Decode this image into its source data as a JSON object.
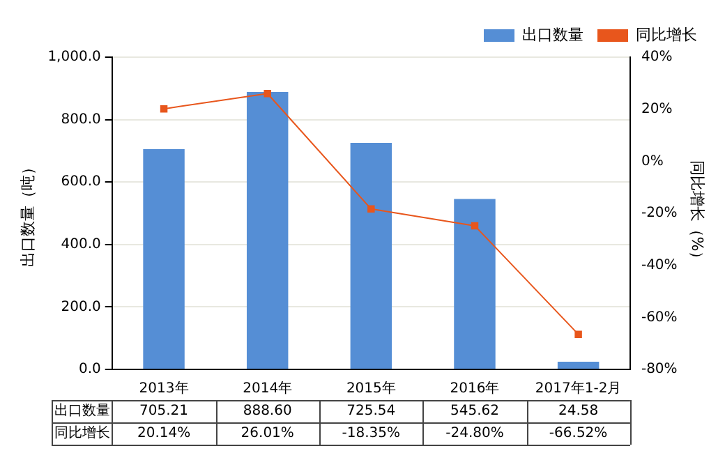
{
  "chart_data": {
    "type": "bar",
    "categories": [
      "2013年",
      "2014年",
      "2015年",
      "2016年",
      "2017年1-2月"
    ],
    "series": [
      {
        "name": "出口数量",
        "color": "#558ed5",
        "values": [
          705.21,
          888.6,
          725.54,
          545.62,
          24.58
        ],
        "value_labels": [
          "705.21",
          "888.60",
          "725.54",
          "545.62",
          "24.58"
        ]
      },
      {
        "name": "同比增长",
        "type": "line",
        "axis": "y2",
        "color": "#e8561c",
        "marker": "square",
        "values": [
          20.14,
          26.01,
          -18.35,
          -24.8,
          -66.52
        ],
        "value_labels": [
          "20.14%",
          "26.01%",
          "-18.35%",
          "-24.80%",
          "-66.52%"
        ]
      }
    ],
    "ylabel": "出口数量（吨）",
    "y2label": "同比增长（%）",
    "ylim": [
      0,
      1000
    ],
    "yticks": [
      {
        "value": 0,
        "label": "0.0"
      },
      {
        "value": 200,
        "label": "200.0"
      },
      {
        "value": 400,
        "label": "400.0"
      },
      {
        "value": 600,
        "label": "600.0"
      },
      {
        "value": 800,
        "label": "800.0"
      },
      {
        "value": 1000,
        "label": "1,000.0"
      }
    ],
    "y2lim": [
      -80,
      40
    ],
    "y2ticks": [
      {
        "value": -80,
        "label": "-80%"
      },
      {
        "value": -60,
        "label": "-60%"
      },
      {
        "value": -40,
        "label": "-40%"
      },
      {
        "value": -20,
        "label": "-20%"
      },
      {
        "value": 0,
        "label": "0%"
      },
      {
        "value": 20,
        "label": "20%"
      },
      {
        "value": 40,
        "label": "40%"
      }
    ],
    "grid": "y",
    "legend": "top right"
  }
}
